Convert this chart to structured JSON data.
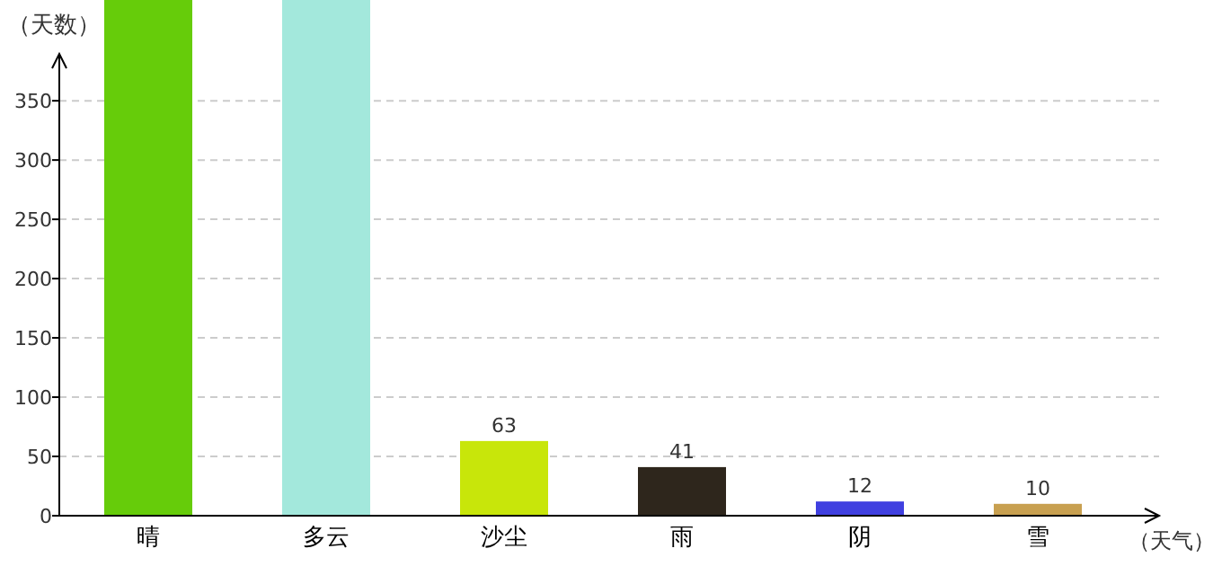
{
  "chart_data": {
    "type": "bar",
    "xlabel": "（天气）",
    "ylabel": "（天数）",
    "categories": [
      "晴",
      "多云",
      "沙尘",
      "雨",
      "阴",
      "雪"
    ],
    "values": [
      435,
      435,
      63,
      41,
      12,
      10
    ],
    "colors": [
      "#66cc0a",
      "#a3e8dc",
      "#c8e60a",
      "#2e261c",
      "#4040e0",
      "#c8a050"
    ],
    "value_labels": [
      null,
      null,
      "63",
      "41",
      "12",
      "10"
    ],
    "ylim": [
      0,
      435
    ],
    "yticks": [
      0,
      50,
      100,
      150,
      200,
      250,
      300,
      350
    ],
    "grid": "y"
  }
}
